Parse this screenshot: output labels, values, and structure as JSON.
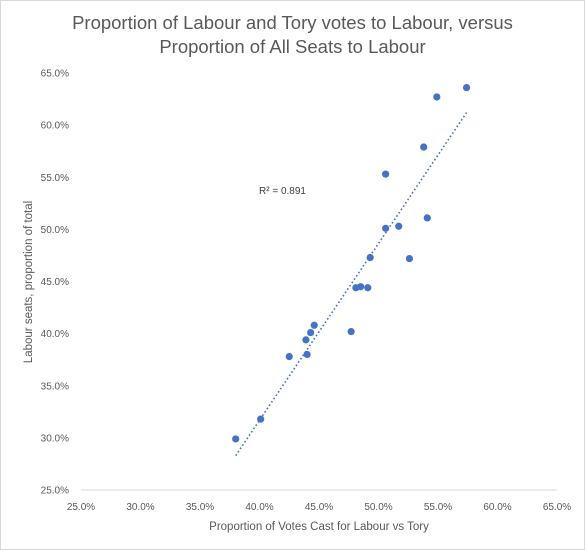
{
  "chart_data": {
    "type": "scatter",
    "title_line1": "Proportion of Labour and Tory votes to Labour, versus",
    "title_line2": "Proportion of All Seats to Labour",
    "xlabel": "Proportion of Votes Cast for Labour vs Tory",
    "ylabel": "Labour seats, proportion of total",
    "xlim": [
      0.25,
      0.65
    ],
    "ylim": [
      0.25,
      0.65
    ],
    "x_ticks": [
      0.25,
      0.3,
      0.35,
      0.4,
      0.45,
      0.5,
      0.55,
      0.6,
      0.65
    ],
    "y_ticks": [
      0.25,
      0.3,
      0.35,
      0.4,
      0.45,
      0.5,
      0.55,
      0.6,
      0.65
    ],
    "x_tick_labels": [
      "25.0%",
      "30.0%",
      "35.0%",
      "40.0%",
      "45.0%",
      "50.0%",
      "55.0%",
      "60.0%",
      "65.0%"
    ],
    "y_tick_labels": [
      "25.0%",
      "30.0%",
      "35.0%",
      "40.0%",
      "45.0%",
      "50.0%",
      "55.0%",
      "60.0%",
      "65.0%"
    ],
    "grid": false,
    "points": [
      {
        "x": 0.38,
        "y": 0.299
      },
      {
        "x": 0.401,
        "y": 0.318
      },
      {
        "x": 0.425,
        "y": 0.378
      },
      {
        "x": 0.439,
        "y": 0.394
      },
      {
        "x": 0.44,
        "y": 0.38
      },
      {
        "x": 0.443,
        "y": 0.401
      },
      {
        "x": 0.446,
        "y": 0.408
      },
      {
        "x": 0.477,
        "y": 0.402
      },
      {
        "x": 0.481,
        "y": 0.444
      },
      {
        "x": 0.485,
        "y": 0.445
      },
      {
        "x": 0.491,
        "y": 0.444
      },
      {
        "x": 0.493,
        "y": 0.473
      },
      {
        "x": 0.506,
        "y": 0.501
      },
      {
        "x": 0.506,
        "y": 0.553
      },
      {
        "x": 0.517,
        "y": 0.503
      },
      {
        "x": 0.526,
        "y": 0.472
      },
      {
        "x": 0.538,
        "y": 0.579
      },
      {
        "x": 0.541,
        "y": 0.511
      },
      {
        "x": 0.549,
        "y": 0.627
      },
      {
        "x": 0.574,
        "y": 0.636
      }
    ],
    "trendline": {
      "type": "linear",
      "style": "dotted",
      "x_range": [
        0.38,
        0.574
      ],
      "y_range": [
        0.283,
        0.612
      ]
    },
    "r_squared_label": "R² = 0.891",
    "colors": {
      "points": "#4472c4",
      "trendline": "#4472c4",
      "text": "#595959",
      "axis": "#d9d9d9"
    }
  }
}
